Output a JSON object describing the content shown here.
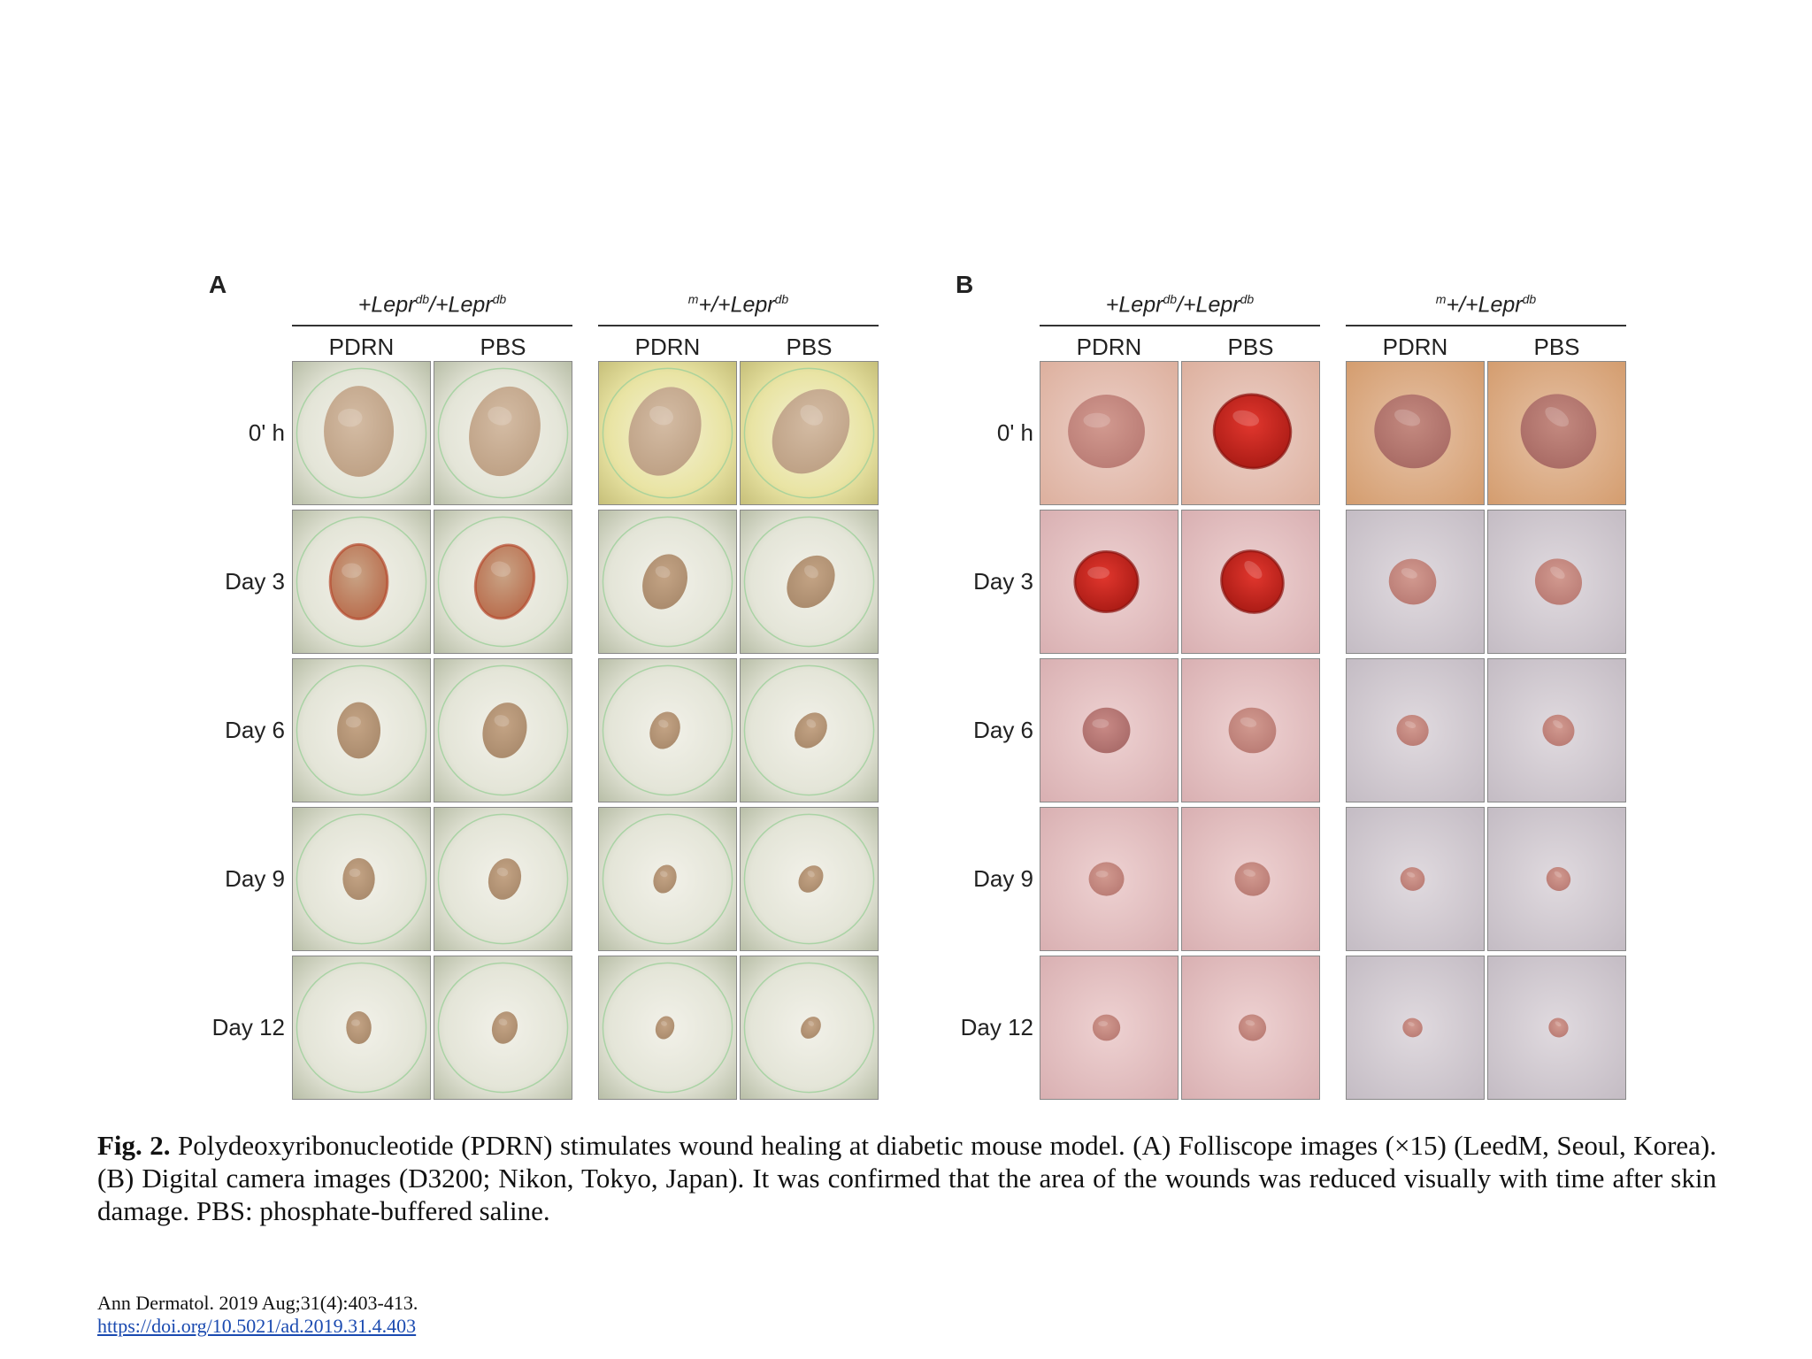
{
  "figure": {
    "panels": [
      {
        "id": "A",
        "letter": "A",
        "imaging": "folliscope",
        "groups": [
          {
            "header_main": "+Lepr",
            "header_sup_1": "db",
            "header_mid": "/+Lepr",
            "header_sup_2": "db",
            "columns": [
              "PDRN",
              "PBS"
            ]
          },
          {
            "header_pre_sup": "m",
            "header_main": "+/+Lepr",
            "header_sup_2": "db",
            "columns": [
              "PDRN",
              "PBS"
            ]
          }
        ],
        "rows": [
          "0' h",
          "Day 3",
          "Day 6",
          "Day 9",
          "Day 12"
        ]
      },
      {
        "id": "B",
        "letter": "B",
        "imaging": "digital-camera",
        "groups": [
          {
            "header_main": "+Lepr",
            "header_sup_1": "db",
            "header_mid": "/+Lepr",
            "header_sup_2": "db",
            "columns": [
              "PDRN",
              "PBS"
            ]
          },
          {
            "header_pre_sup": "m",
            "header_main": "+/+Lepr",
            "header_sup_2": "db",
            "columns": [
              "PDRN",
              "PBS"
            ]
          }
        ],
        "rows": [
          "0' h",
          "Day 3",
          "Day 6",
          "Day 9",
          "Day 12"
        ]
      }
    ]
  },
  "caption": {
    "label": "Fig. 2.",
    "text": " Polydeoxyribonucleotide (PDRN) stimulates wound healing at diabetic mouse model. (A) Folliscope images (×15) (LeedM, Seoul, Korea). (B) Digital camera images (D3200; Nikon, Tokyo, Japan). It was confirmed that the area of the wounds was reduced visually with time after skin damage. PBS: phosphate-buffered saline."
  },
  "citation": {
    "journal": "Ann Dermatol. 2019 Aug;31(4):403-413.",
    "doi_url": "https://doi.org/10.5021/ad.2019.31.4.403"
  },
  "colors": {
    "folliscope_bg": "#d9dccb",
    "folliscope_ring": "#9ccf9a",
    "skin_pink": "#e8c6c4",
    "skin_gray": "#d6d2d6",
    "wound_red": "#c8231c",
    "wound_tan": "#b89a82",
    "link_blue": "#1a4ab0"
  }
}
